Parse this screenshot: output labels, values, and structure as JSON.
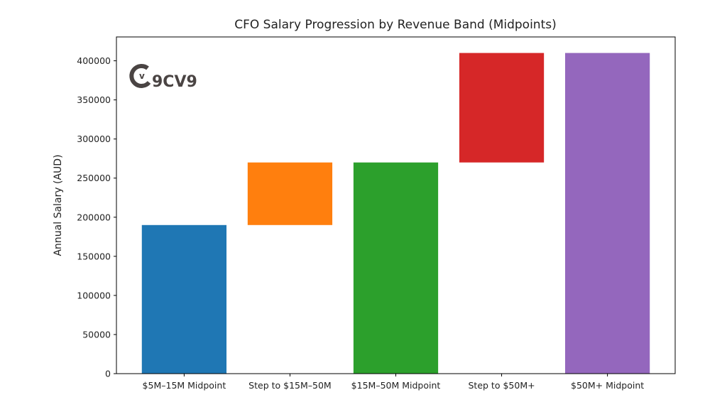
{
  "chart_data": {
    "type": "bar",
    "subtype": "waterfall",
    "title": "CFO Salary Progression by Revenue Band (Midpoints)",
    "xlabel": "",
    "ylabel": "Annual Salary (AUD)",
    "categories": [
      "$5M–15M Midpoint",
      "Step to $15M–50M",
      "$15M–50M Midpoint",
      "Step to $50M+",
      "$50M+ Midpoint"
    ],
    "bars": [
      {
        "bottom": 0,
        "top": 190000,
        "color": "#1f77b4"
      },
      {
        "bottom": 190000,
        "top": 270000,
        "color": "#ff7f0e"
      },
      {
        "bottom": 0,
        "top": 270000,
        "color": "#2ca02c"
      },
      {
        "bottom": 270000,
        "top": 410000,
        "color": "#d62728"
      },
      {
        "bottom": 0,
        "top": 410000,
        "color": "#9467bd"
      }
    ],
    "ylim": [
      0,
      430500
    ],
    "yticks": [
      0,
      50000,
      100000,
      150000,
      200000,
      250000,
      300000,
      350000,
      400000
    ],
    "grid": false,
    "watermark": "9CV9"
  }
}
